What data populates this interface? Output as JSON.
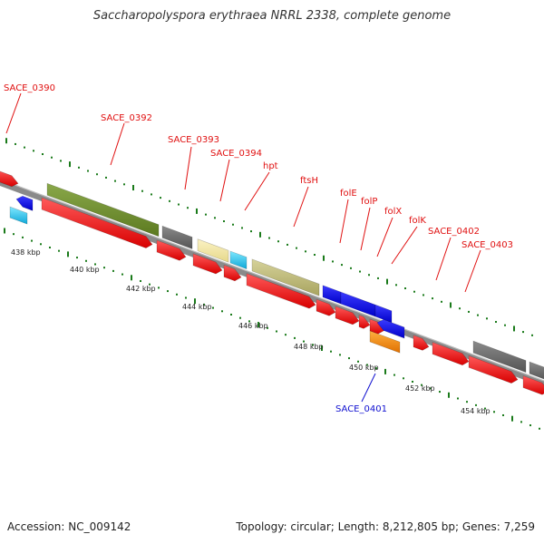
{
  "title": "Saccharopolyspora erythraea NRRL 2338, complete genome",
  "footer": {
    "accession": "Accession: NC_009142",
    "summary": "Topology: circular; Length: 8,212,805 bp; Genes: 7,259"
  },
  "colors": {
    "label_red": "#e01010",
    "label_blue": "#1010d0",
    "backbone": "#7a7a7a",
    "dots": "#1a7a1a"
  },
  "kbp_labels": [
    "438 kbp",
    "440 kbp",
    "442 kbp",
    "444 kbp",
    "446 kbp",
    "448 kbp",
    "450 kbp",
    "452 kbp",
    "454 kbp"
  ],
  "gene_labels": [
    {
      "text": "SACE_0390",
      "color": "red"
    },
    {
      "text": "SACE_0392",
      "color": "red"
    },
    {
      "text": "SACE_0393",
      "color": "red"
    },
    {
      "text": "SACE_0394",
      "color": "red"
    },
    {
      "text": "hpt",
      "color": "red"
    },
    {
      "text": "ftsH",
      "color": "red"
    },
    {
      "text": "folE",
      "color": "red"
    },
    {
      "text": "folP",
      "color": "red"
    },
    {
      "text": "folX",
      "color": "red"
    },
    {
      "text": "folK",
      "color": "red"
    },
    {
      "text": "SACE_0402",
      "color": "red"
    },
    {
      "text": "SACE_0403",
      "color": "red"
    },
    {
      "text": "SACE_0401",
      "color": "blue"
    }
  ]
}
